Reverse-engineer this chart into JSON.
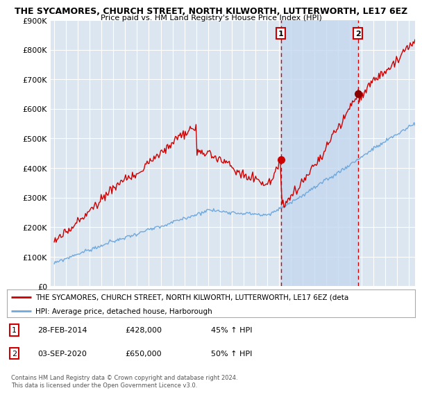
{
  "title": "THE SYCAMORES, CHURCH STREET, NORTH KILWORTH, LUTTERWORTH, LE17 6EZ",
  "subtitle": "Price paid vs. HM Land Registry's House Price Index (HPI)",
  "ylim": [
    0,
    900000
  ],
  "yticks": [
    0,
    100000,
    200000,
    300000,
    400000,
    500000,
    600000,
    700000,
    800000,
    900000
  ],
  "ytick_labels": [
    "£0",
    "£100K",
    "£200K",
    "£300K",
    "£400K",
    "£500K",
    "£600K",
    "£700K",
    "£800K",
    "£900K"
  ],
  "bg_color": "#ffffff",
  "plot_bg_color": "#dce6f1",
  "shade_color": "#c5d8ef",
  "grid_color": "#ffffff",
  "sale1_date": 2014.16,
  "sale1_price": 428000,
  "sale2_date": 2020.67,
  "sale2_price": 650000,
  "hpi_line_color": "#6fa8dc",
  "price_line_color": "#cc0000",
  "sale_marker_color": "#cc0000",
  "vline_color": "#cc0000",
  "legend_label_red": "THE SYCAMORES, CHURCH STREET, NORTH KILWORTH, LUTTERWORTH, LE17 6EZ (deta",
  "legend_label_blue": "HPI: Average price, detached house, Harborough",
  "annotation1_date": "28-FEB-2014",
  "annotation1_price": "£428,000",
  "annotation1_hpi": "45% ↑ HPI",
  "annotation2_date": "03-SEP-2020",
  "annotation2_price": "£650,000",
  "annotation2_hpi": "50% ↑ HPI",
  "copyright_text": "Contains HM Land Registry data © Crown copyright and database right 2024.\nThis data is licensed under the Open Government Licence v3.0.",
  "xstart": 1995,
  "xend": 2026
}
